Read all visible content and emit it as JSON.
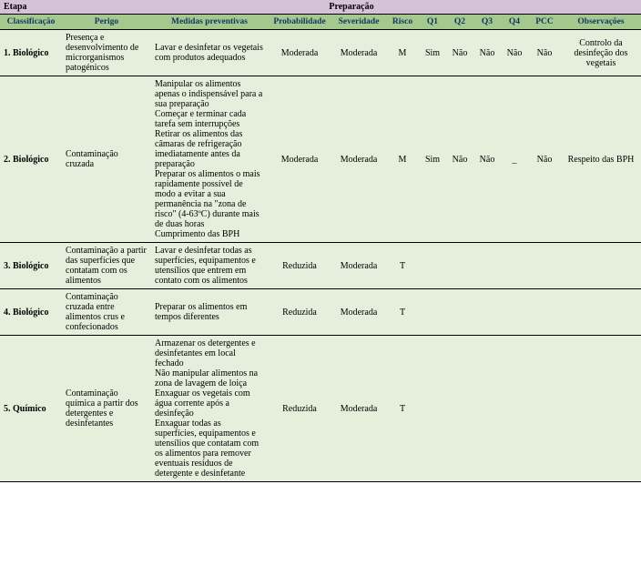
{
  "colors": {
    "etapa_bg": "#d5c2d9",
    "header_bg": "#a4c88e",
    "header_fg": "#12365f",
    "row_bg": "#e6efdc",
    "border": "#000000"
  },
  "widths": {
    "classificacao": 68,
    "perigo": 98,
    "medidas": 128,
    "probabilidade": 70,
    "severidade": 60,
    "risco": 36,
    "q1": 30,
    "q2": 30,
    "q3": 30,
    "q4": 30,
    "pcc": 36,
    "observacoes": 88
  },
  "etapa": {
    "label": "Etapa",
    "value": "Preparação"
  },
  "headers": {
    "classificacao": "Classificação",
    "perigo": "Perigo",
    "medidas": "Medidas preventivas",
    "probabilidade": "Probabilidade",
    "severidade": "Severidade",
    "risco": "Risco",
    "q1": "Q1",
    "q2": "Q2",
    "q3": "Q3",
    "q4": "Q4",
    "pcc": "PCC",
    "observacoes": "Observações"
  },
  "rows": [
    {
      "classificacao": "1. Biológico",
      "perigo": "Presença e desenvolvimento de microrganismos patogénicos",
      "medidas": "Lavar e desinfetar os vegetais com produtos adequados",
      "probabilidade": "Moderada",
      "severidade": "Moderada",
      "risco": "M",
      "q1": "Sim",
      "q2": "Não",
      "q3": "Não",
      "q4": "Não",
      "pcc": "Não",
      "observacoes": "Controlo da desinfeção dos vegetais"
    },
    {
      "classificacao": "2. Biológico",
      "perigo": "Contaminação cruzada",
      "medidas": "Manipular os alimentos apenas o indispensável para a sua preparação\nComeçar e terminar cada tarefa sem interrupções\nRetirar os alimentos das câmaras de refrigeração imediatamente antes da preparação\nPreparar os alimentos o mais rapidamente possível de modo a evitar a sua permanência na \"zona de risco\" (4-63ºC) durante mais de duas horas\nCumprimento das BPH",
      "probabilidade": "Moderada",
      "severidade": "Moderada",
      "risco": "M",
      "q1": "Sim",
      "q2": "Não",
      "q3": "Não",
      "q4": "_",
      "pcc": "Não",
      "observacoes": "Respeito das BPH"
    },
    {
      "classificacao": "3. Biológico",
      "perigo": "Contaminação a partir das superfícies que contatam com os alimentos",
      "medidas": "Lavar e desinfetar todas as superfícies, equipamentos e utensílios que entrem em contato com os alimentos",
      "probabilidade": "Reduzida",
      "severidade": "Moderada",
      "risco": "T",
      "q1": "",
      "q2": "",
      "q3": "",
      "q4": "",
      "pcc": "",
      "observacoes": ""
    },
    {
      "classificacao": "4. Biológico",
      "perigo": "Contaminação cruzada entre alimentos crus e confecionados",
      "medidas": "Preparar os alimentos em tempos diferentes",
      "probabilidade": "Reduzida",
      "severidade": "Moderada",
      "risco": "T",
      "q1": "",
      "q2": "",
      "q3": "",
      "q4": "",
      "pcc": "",
      "observacoes": ""
    },
    {
      "classificacao": "5. Químico",
      "perigo": "Contaminação química a partir dos detergentes e desinfetantes",
      "medidas": "Armazenar os detergentes e desinfetantes em local fechado\nNão manipular alimentos na zona de lavagem de loiça\nEnxaguar os vegetais com água corrente após a desinfeção\nEnxaguar todas as superfícies, equipamentos e utensílios que contatam com os alimentos para remover eventuais resíduos de detergente e desinfetante",
      "probabilidade": "Reduzida",
      "severidade": "Moderada",
      "risco": "T",
      "q1": "",
      "q2": "",
      "q3": "",
      "q4": "",
      "pcc": "",
      "observacoes": ""
    }
  ]
}
